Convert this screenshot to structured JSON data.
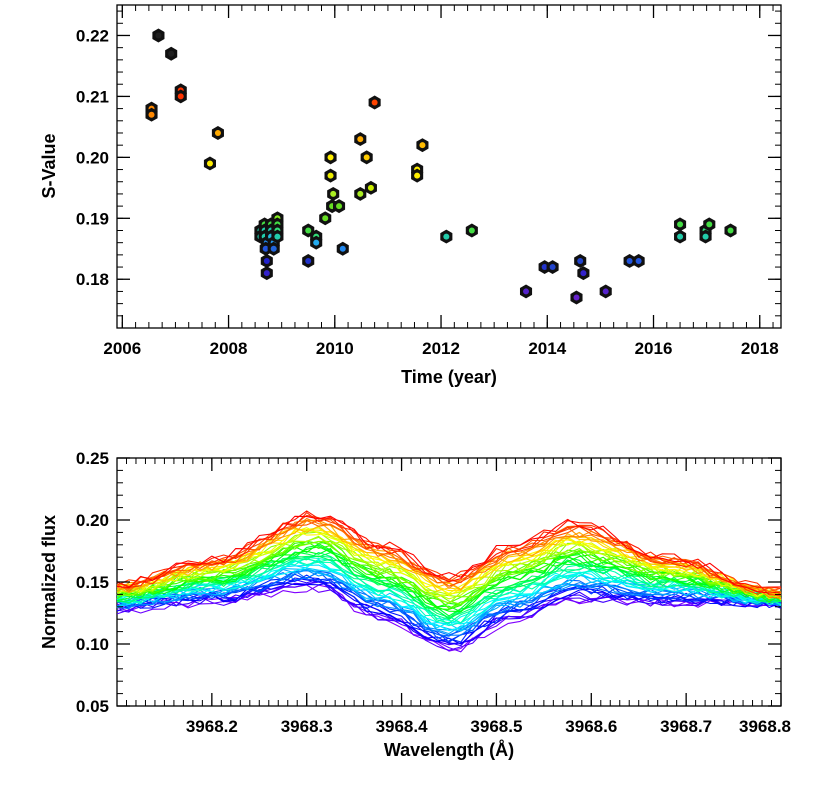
{
  "chart_data": [
    {
      "type": "scatter",
      "name": "s-value-vs-time",
      "xlabel": "Time (year)",
      "ylabel": "S-Value",
      "xlim": [
        2005.9,
        2018.4
      ],
      "ylim": [
        0.172,
        0.225
      ],
      "xticks": [
        2006,
        2008,
        2010,
        2012,
        2014,
        2016,
        2018
      ],
      "xtick_labels": [
        "2006",
        "2008",
        "2010",
        "2012",
        "2014",
        "2016",
        "2018"
      ],
      "yticks": [
        0.18,
        0.19,
        0.2,
        0.21,
        0.22
      ],
      "ytick_labels": [
        "0.18",
        "0.19",
        "0.20",
        "0.21",
        "0.22"
      ],
      "marker": "black hexagon with colored center (color encodes S-value, rainbow scale)",
      "points": [
        {
          "x": 2006.55,
          "y": 0.208,
          "c": "#ff8800"
        },
        {
          "x": 2006.55,
          "y": 0.207,
          "c": "#ff8800"
        },
        {
          "x": 2006.68,
          "y": 0.22,
          "c": "#202020"
        },
        {
          "x": 2006.92,
          "y": 0.217,
          "c": "#202020"
        },
        {
          "x": 2007.1,
          "y": 0.211,
          "c": "#ff3300"
        },
        {
          "x": 2007.1,
          "y": 0.21,
          "c": "#ff3300"
        },
        {
          "x": 2007.65,
          "y": 0.199,
          "c": "#ffee00"
        },
        {
          "x": 2007.8,
          "y": 0.204,
          "c": "#ffaa00"
        },
        {
          "x": 2008.6,
          "y": 0.188,
          "c": "#22ccaa"
        },
        {
          "x": 2008.6,
          "y": 0.187,
          "c": "#22ccaa"
        },
        {
          "x": 2008.68,
          "y": 0.189,
          "c": "#44dd44"
        },
        {
          "x": 2008.68,
          "y": 0.188,
          "c": "#22ccaa"
        },
        {
          "x": 2008.68,
          "y": 0.187,
          "c": "#22ccaa"
        },
        {
          "x": 2008.72,
          "y": 0.186,
          "c": "#2288ee"
        },
        {
          "x": 2008.7,
          "y": 0.185,
          "c": "#2255dd"
        },
        {
          "x": 2008.72,
          "y": 0.183,
          "c": "#2222cc"
        },
        {
          "x": 2008.72,
          "y": 0.181,
          "c": "#3322cc"
        },
        {
          "x": 2008.8,
          "y": 0.189,
          "c": "#44dd44"
        },
        {
          "x": 2008.8,
          "y": 0.188,
          "c": "#22ccaa"
        },
        {
          "x": 2008.8,
          "y": 0.187,
          "c": "#22bbdd"
        },
        {
          "x": 2008.85,
          "y": 0.186,
          "c": "#2299ee"
        },
        {
          "x": 2008.85,
          "y": 0.185,
          "c": "#2266dd"
        },
        {
          "x": 2008.92,
          "y": 0.19,
          "c": "#88ee22"
        },
        {
          "x": 2008.92,
          "y": 0.189,
          "c": "#44dd44"
        },
        {
          "x": 2008.92,
          "y": 0.188,
          "c": "#33dd77"
        },
        {
          "x": 2008.92,
          "y": 0.187,
          "c": "#22ccaa"
        },
        {
          "x": 2009.5,
          "y": 0.188,
          "c": "#44dd44"
        },
        {
          "x": 2009.5,
          "y": 0.183,
          "c": "#2233cc"
        },
        {
          "x": 2009.65,
          "y": 0.187,
          "c": "#33dd77"
        },
        {
          "x": 2009.65,
          "y": 0.186,
          "c": "#22aaee"
        },
        {
          "x": 2009.82,
          "y": 0.19,
          "c": "#66dd22"
        },
        {
          "x": 2009.92,
          "y": 0.2,
          "c": "#ffee00"
        },
        {
          "x": 2009.92,
          "y": 0.197,
          "c": "#eeee00"
        },
        {
          "x": 2009.97,
          "y": 0.194,
          "c": "#aaee22"
        },
        {
          "x": 2009.95,
          "y": 0.192,
          "c": "#66dd22"
        },
        {
          "x": 2010.08,
          "y": 0.192,
          "c": "#66dd22"
        },
        {
          "x": 2010.15,
          "y": 0.185,
          "c": "#2288ee"
        },
        {
          "x": 2010.48,
          "y": 0.203,
          "c": "#ffaa00"
        },
        {
          "x": 2010.48,
          "y": 0.194,
          "c": "#aaee22"
        },
        {
          "x": 2010.6,
          "y": 0.2,
          "c": "#ffcc00"
        },
        {
          "x": 2010.68,
          "y": 0.195,
          "c": "#ccee00"
        },
        {
          "x": 2010.75,
          "y": 0.209,
          "c": "#ff4400"
        },
        {
          "x": 2011.55,
          "y": 0.198,
          "c": "#ffee00"
        },
        {
          "x": 2011.55,
          "y": 0.197,
          "c": "#ffee00"
        },
        {
          "x": 2011.65,
          "y": 0.202,
          "c": "#ffbb00"
        },
        {
          "x": 2012.1,
          "y": 0.187,
          "c": "#22ccaa"
        },
        {
          "x": 2012.58,
          "y": 0.188,
          "c": "#44dd44"
        },
        {
          "x": 2013.6,
          "y": 0.178,
          "c": "#5522cc"
        },
        {
          "x": 2013.95,
          "y": 0.182,
          "c": "#2233cc"
        },
        {
          "x": 2014.1,
          "y": 0.182,
          "c": "#2244cc"
        },
        {
          "x": 2014.55,
          "y": 0.177,
          "c": "#6622cc"
        },
        {
          "x": 2014.62,
          "y": 0.183,
          "c": "#2244cc"
        },
        {
          "x": 2014.68,
          "y": 0.181,
          "c": "#3322cc"
        },
        {
          "x": 2015.1,
          "y": 0.178,
          "c": "#5522cc"
        },
        {
          "x": 2015.55,
          "y": 0.183,
          "c": "#2255dd"
        },
        {
          "x": 2015.72,
          "y": 0.183,
          "c": "#2255dd"
        },
        {
          "x": 2016.5,
          "y": 0.189,
          "c": "#44dd44"
        },
        {
          "x": 2016.5,
          "y": 0.187,
          "c": "#22ccaa"
        },
        {
          "x": 2016.98,
          "y": 0.188,
          "c": "#33dd77"
        },
        {
          "x": 2016.98,
          "y": 0.187,
          "c": "#22ccaa"
        },
        {
          "x": 2017.05,
          "y": 0.189,
          "c": "#44dd44"
        },
        {
          "x": 2017.45,
          "y": 0.188,
          "c": "#44dd44"
        }
      ]
    },
    {
      "type": "line",
      "name": "normalized-flux-vs-wavelength",
      "xlabel": "Wavelength (Å)",
      "ylabel": "Normalized flux",
      "xlim": [
        3968.1,
        3968.8
      ],
      "ylim": [
        0.05,
        0.25
      ],
      "xticks": [
        3968.2,
        3968.3,
        3968.4,
        3968.5,
        3968.6,
        3968.7,
        3968.8
      ],
      "xtick_labels": [
        "3968.2",
        "3968.3",
        "3968.4",
        "3968.5",
        "3968.6",
        "3968.7",
        "3968.8"
      ],
      "yticks": [
        0.05,
        0.1,
        0.15,
        0.2,
        0.25
      ],
      "ytick_labels": [
        "0.05",
        "0.10",
        "0.15",
        "0.20",
        "0.25"
      ],
      "series_count": 56,
      "color_scale": "rainbow (violet = low S-value, red = high S-value)",
      "profile": {
        "peak1_x": 3968.31,
        "trough_x": 3968.45,
        "peak2_x": 3968.58,
        "high_activity": {
          "start": 0.148,
          "peak1": 0.205,
          "trough": 0.155,
          "peak2": 0.198,
          "end": 0.142
        },
        "low_activity": {
          "start": 0.128,
          "peak1": 0.145,
          "trough": 0.095,
          "peak2": 0.135,
          "end": 0.132
        }
      }
    }
  ]
}
